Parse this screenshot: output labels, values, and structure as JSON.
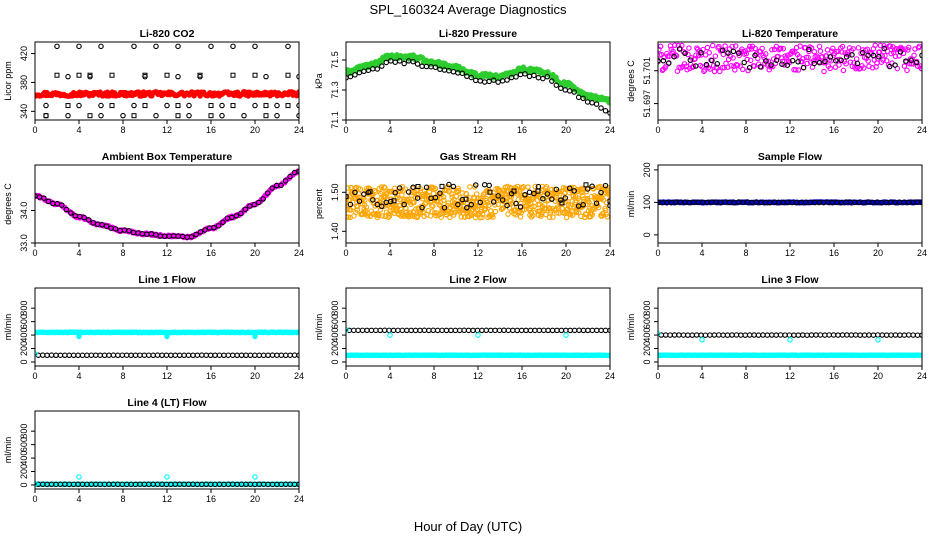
{
  "figure": {
    "title": "SPL_160324  Average Diagnostics",
    "xlabel": "Hour of Day (UTC)"
  },
  "chart_data": [
    {
      "type": "scatter",
      "title": "Li-820 CO2",
      "ylabel": "Licor ppm",
      "xlim": [
        0,
        24
      ],
      "ylim": [
        328,
        436
      ],
      "xticks": [
        0,
        4,
        8,
        12,
        16,
        20,
        24
      ],
      "yticks": [
        340,
        380,
        420
      ],
      "grid": false,
      "series": [
        {
          "color": "#ff0000",
          "marker": "filled-circle",
          "pattern": "flat",
          "level": 364,
          "noise": 3,
          "n": 220
        },
        {
          "color": "#000000",
          "marker": "open-circle",
          "pattern": "set",
          "points": [
            [
              2,
              430
            ],
            [
              4,
              430
            ],
            [
              6,
              430
            ],
            [
              9,
              430
            ],
            [
              11,
              430
            ],
            [
              13,
              430
            ],
            [
              16,
              430
            ],
            [
              18,
              430
            ],
            [
              20,
              430
            ],
            [
              23,
              430
            ],
            [
              1,
              334
            ],
            [
              3,
              334
            ],
            [
              6,
              334
            ],
            [
              8,
              334
            ],
            [
              11,
              334
            ],
            [
              14,
              334
            ],
            [
              17,
              334
            ],
            [
              19,
              334
            ],
            [
              22,
              334
            ],
            [
              24,
              334
            ],
            [
              1,
              348
            ],
            [
              4,
              348
            ],
            [
              6,
              348
            ],
            [
              9,
              348
            ],
            [
              12,
              348
            ],
            [
              14,
              348
            ],
            [
              17,
              348
            ],
            [
              20,
              348
            ],
            [
              22,
              348
            ],
            [
              24,
              348
            ],
            [
              3,
              388
            ],
            [
              5,
              388
            ],
            [
              10,
              388
            ],
            [
              13,
              388
            ],
            [
              15,
              388
            ],
            [
              21,
              388
            ],
            [
              24,
              388
            ]
          ]
        },
        {
          "color": "#000000",
          "marker": "open-square",
          "pattern": "set",
          "points": [
            [
              2,
              390
            ],
            [
              4,
              390
            ],
            [
              5,
              390
            ],
            [
              7,
              390
            ],
            [
              10,
              390
            ],
            [
              12,
              390
            ],
            [
              15,
              390
            ],
            [
              18,
              390
            ],
            [
              20,
              390
            ],
            [
              23,
              390
            ],
            [
              3,
              348
            ],
            [
              7,
              348
            ],
            [
              10,
              348
            ],
            [
              13,
              348
            ],
            [
              16,
              348
            ],
            [
              18,
              348
            ],
            [
              21,
              348
            ],
            [
              23,
              348
            ],
            [
              1,
              334
            ],
            [
              5,
              334
            ],
            [
              9,
              334
            ],
            [
              13,
              334
            ],
            [
              16,
              334
            ],
            [
              21,
              334
            ]
          ]
        }
      ]
    },
    {
      "type": "scatter",
      "title": "Li-820 Pressure",
      "ylabel": "kPa",
      "xlim": [
        0,
        24
      ],
      "ylim": [
        71.1,
        71.62
      ],
      "xticks": [
        0,
        4,
        8,
        12,
        16,
        20,
        24
      ],
      "yticks": [
        71.1,
        71.3,
        71.5
      ],
      "yticklabels": [
        "71.1",
        "71.3",
        "71.5"
      ],
      "grid": false,
      "series": [
        {
          "color": "#2ecc2e",
          "marker": "filled-circle",
          "pattern": "curve",
          "noise": 0.015,
          "n": 260,
          "knots": [
            [
              0,
              71.42
            ],
            [
              2,
              71.46
            ],
            [
              4,
              71.52
            ],
            [
              6,
              71.52
            ],
            [
              8,
              71.48
            ],
            [
              10,
              71.45
            ],
            [
              12,
              71.4
            ],
            [
              14,
              71.39
            ],
            [
              16,
              71.44
            ],
            [
              18,
              71.42
            ],
            [
              20,
              71.34
            ],
            [
              22,
              71.26
            ],
            [
              24,
              71.23
            ]
          ]
        },
        {
          "color": "#000000",
          "marker": "open-circle",
          "pattern": "curve",
          "noise": 0.01,
          "n": 60,
          "offset": -0.035,
          "knots": [
            [
              0,
              71.42
            ],
            [
              2,
              71.46
            ],
            [
              4,
              71.52
            ],
            [
              6,
              71.52
            ],
            [
              8,
              71.48
            ],
            [
              10,
              71.45
            ],
            [
              12,
              71.4
            ],
            [
              14,
              71.39
            ],
            [
              16,
              71.44
            ],
            [
              18,
              71.42
            ],
            [
              20,
              71.34
            ],
            [
              22,
              71.26
            ],
            [
              24,
              71.18
            ]
          ]
        }
      ]
    },
    {
      "type": "scatter",
      "title": "Li-820 Temperature",
      "ylabel": "degrees C",
      "xlim": [
        0,
        24
      ],
      "ylim": [
        51.695,
        51.7045
      ],
      "xticks": [
        0,
        4,
        8,
        12,
        16,
        20,
        24
      ],
      "yticks": [
        51.697,
        51.701
      ],
      "yticklabels": [
        "51.697",
        "51.701"
      ],
      "grid": false,
      "series": [
        {
          "color": "#ff00ff",
          "marker": "open-circle",
          "pattern": "flat",
          "level": 51.7025,
          "noise": 0.0016,
          "n": 300
        },
        {
          "color": "#000000",
          "marker": "open-circle",
          "pattern": "flat",
          "level": 51.7025,
          "noise": 0.0012,
          "n": 50
        }
      ]
    },
    {
      "type": "scatter",
      "title": "Ambient Box Temperature",
      "ylabel": "degrees C",
      "xlim": [
        0,
        24
      ],
      "ylim": [
        33.0,
        35.4
      ],
      "xticks": [
        0,
        4,
        8,
        12,
        16,
        20,
        24
      ],
      "yticks": [
        33,
        34
      ],
      "yticklabels": [
        "33.0",
        "34.0"
      ],
      "grid": false,
      "series": [
        {
          "color": "#ff00ff",
          "marker": "filled-circle",
          "pattern": "curve",
          "noise": 0.03,
          "n": 260,
          "knots": [
            [
              0,
              34.45
            ],
            [
              2,
              34.2
            ],
            [
              4,
              33.8
            ],
            [
              6,
              33.55
            ],
            [
              8,
              33.38
            ],
            [
              10,
              33.28
            ],
            [
              12,
              33.22
            ],
            [
              14,
              33.18
            ],
            [
              16,
              33.45
            ],
            [
              18,
              33.8
            ],
            [
              20,
              34.2
            ],
            [
              22,
              34.75
            ],
            [
              24,
              35.2
            ]
          ]
        },
        {
          "color": "#000000",
          "marker": "open-circle",
          "pattern": "curve",
          "noise": 0.02,
          "n": 60,
          "knots": [
            [
              0,
              34.45
            ],
            [
              2,
              34.2
            ],
            [
              4,
              33.8
            ],
            [
              6,
              33.55
            ],
            [
              8,
              33.38
            ],
            [
              10,
              33.28
            ],
            [
              12,
              33.22
            ],
            [
              14,
              33.18
            ],
            [
              16,
              33.45
            ],
            [
              18,
              33.8
            ],
            [
              20,
              34.2
            ],
            [
              22,
              34.75
            ],
            [
              24,
              35.2
            ]
          ]
        }
      ]
    },
    {
      "type": "scatter",
      "title": "Gas Stream RH",
      "ylabel": "percent",
      "xlim": [
        0,
        24
      ],
      "ylim": [
        1.37,
        1.57
      ],
      "xticks": [
        0,
        4,
        8,
        12,
        16,
        20,
        24
      ],
      "yticks": [
        1.4,
        1.5
      ],
      "yticklabels": [
        "1.40",
        "1.50"
      ],
      "grid": false,
      "series": [
        {
          "color": "#ffa500",
          "marker": "open-circle",
          "pattern": "flat",
          "level": 1.475,
          "noise": 0.04,
          "n": 700
        },
        {
          "color": "#000000",
          "marker": "open-circle",
          "pattern": "flat",
          "level": 1.49,
          "noise": 0.03,
          "n": 60
        },
        {
          "color": "#000000",
          "marker": "open-square",
          "pattern": "flat",
          "level": 1.49,
          "noise": 0.03,
          "n": 12
        }
      ]
    },
    {
      "type": "scatter",
      "title": "Sample Flow",
      "ylabel": "ml/min",
      "xlim": [
        0,
        24
      ],
      "ylim": [
        -25,
        215
      ],
      "xticks": [
        0,
        4,
        8,
        12,
        16,
        20,
        24
      ],
      "yticks": [
        0,
        100,
        200
      ],
      "grid": false,
      "series": [
        {
          "color": "#0000cc",
          "marker": "filled-circle",
          "pattern": "flat",
          "level": 100,
          "noise": 1.5,
          "n": 240
        },
        {
          "color": "#000000",
          "marker": "open-circle",
          "pattern": "flat",
          "level": 100,
          "noise": 1,
          "n": 60
        }
      ]
    },
    {
      "type": "scatter",
      "title": "Line 1 Flow",
      "ylabel": "ml/min",
      "xlim": [
        0,
        24
      ],
      "ylim": [
        -60,
        1100
      ],
      "xticks": [
        0,
        4,
        8,
        12,
        16,
        20,
        24
      ],
      "yticks": [
        0,
        200,
        400,
        600,
        800
      ],
      "grid": false,
      "series": [
        {
          "color": "#00ffff",
          "marker": "filled-circle",
          "pattern": "flat",
          "level": 440,
          "noise": 4,
          "n": 240,
          "dips": [
            [
              4,
              380
            ],
            [
              12,
              380
            ],
            [
              20,
              380
            ]
          ]
        },
        {
          "color": "#000000",
          "marker": "open-circle",
          "pattern": "flat",
          "level": 100,
          "noise": 1,
          "n": 60,
          "start": 0.3
        },
        {
          "color": "#00ffff",
          "marker": "open-circle",
          "pattern": "set",
          "points": [
            [
              0,
              120
            ]
          ]
        }
      ]
    },
    {
      "type": "scatter",
      "title": "Line 2 Flow",
      "ylabel": "ml/min",
      "xlim": [
        0,
        24
      ],
      "ylim": [
        -60,
        1100
      ],
      "xticks": [
        0,
        4,
        8,
        12,
        16,
        20,
        24
      ],
      "yticks": [
        0,
        200,
        400,
        600,
        800
      ],
      "grid": false,
      "series": [
        {
          "color": "#00ffff",
          "marker": "filled-circle",
          "pattern": "flat",
          "level": 100,
          "noise": 3,
          "n": 240
        },
        {
          "color": "#000000",
          "marker": "open-circle",
          "pattern": "flat",
          "level": 470,
          "noise": 1,
          "n": 60,
          "start": 0.3
        },
        {
          "color": "#00ffff",
          "marker": "open-circle",
          "pattern": "set",
          "points": [
            [
              0,
              480
            ],
            [
              4,
              400
            ],
            [
              12,
              400
            ],
            [
              20,
              400
            ]
          ]
        }
      ]
    },
    {
      "type": "scatter",
      "title": "Line 3 Flow",
      "ylabel": "ml/min",
      "xlim": [
        0,
        24
      ],
      "ylim": [
        -60,
        1100
      ],
      "xticks": [
        0,
        4,
        8,
        12,
        16,
        20,
        24
      ],
      "yticks": [
        0,
        200,
        400,
        600,
        800
      ],
      "grid": false,
      "series": [
        {
          "color": "#00ffff",
          "marker": "filled-circle",
          "pattern": "flat",
          "level": 100,
          "noise": 3,
          "n": 240
        },
        {
          "color": "#000000",
          "marker": "open-circle",
          "pattern": "flat",
          "level": 400,
          "noise": 2,
          "n": 60,
          "start": 0.3
        },
        {
          "color": "#00ffff",
          "marker": "open-circle",
          "pattern": "set",
          "points": [
            [
              0,
              420
            ],
            [
              4,
              330
            ],
            [
              12,
              330
            ],
            [
              20,
              330
            ]
          ]
        }
      ]
    },
    {
      "type": "scatter",
      "title": "Line 4 (LT) Flow",
      "ylabel": "ml/min",
      "xlim": [
        0,
        24
      ],
      "ylim": [
        -60,
        1100
      ],
      "xticks": [
        0,
        4,
        8,
        12,
        16,
        20,
        24
      ],
      "yticks": [
        0,
        200,
        400,
        600,
        800
      ],
      "grid": false,
      "series": [
        {
          "color": "#00ffff",
          "marker": "filled-circle",
          "pattern": "flat",
          "level": 10,
          "noise": 2,
          "n": 240
        },
        {
          "color": "#000000",
          "marker": "open-circle",
          "pattern": "flat",
          "level": 10,
          "noise": 1,
          "n": 60,
          "start": 0.3
        },
        {
          "color": "#00ffff",
          "marker": "open-circle",
          "pattern": "set",
          "points": [
            [
              0,
              20
            ],
            [
              4,
              120
            ],
            [
              12,
              120
            ],
            [
              20,
              120
            ]
          ]
        }
      ]
    }
  ]
}
